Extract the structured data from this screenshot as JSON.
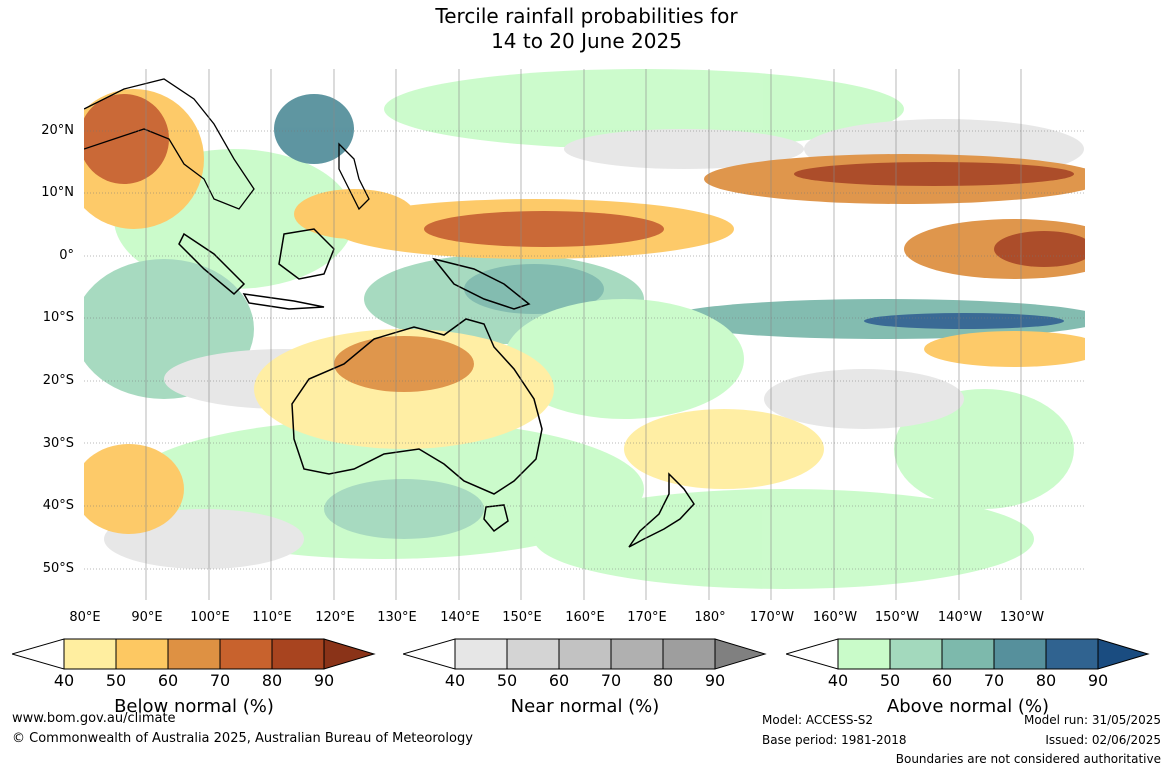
{
  "title": {
    "line1": "Tercile rainfall probabilities for",
    "line2": "14 to 20 June 2025"
  },
  "map": {
    "lat_labels": [
      "20°N",
      "10°N",
      "0°",
      "10°S",
      "20°S",
      "30°S",
      "40°S",
      "50°S"
    ],
    "lon_labels": [
      "80°E",
      "90°E",
      "100°E",
      "110°E",
      "120°E",
      "130°E",
      "140°E",
      "150°E",
      "160°E",
      "170°E",
      "180°",
      "170°W",
      "160°W",
      "150°W",
      "140°W",
      "130°W"
    ]
  },
  "legends": {
    "below": {
      "title": "Below normal (%)",
      "ticks": [
        "40",
        "50",
        "60",
        "70",
        "80",
        "90"
      ],
      "colors": [
        "#ffeea0",
        "#fdc862",
        "#de9143",
        "#c8622d",
        "#a8441f",
        "#8a3318"
      ]
    },
    "near": {
      "title": "Near normal (%)",
      "ticks": [
        "40",
        "50",
        "60",
        "70",
        "80",
        "90"
      ],
      "colors": [
        "#e6e6e6",
        "#d4d4d4",
        "#c2c2c2",
        "#b0b0b0",
        "#9e9e9e",
        "#808080"
      ]
    },
    "above": {
      "title": "Above normal (%)",
      "ticks": [
        "40",
        "50",
        "60",
        "70",
        "80",
        "90"
      ],
      "colors": [
        "#c9fbc9",
        "#a3d9bd",
        "#7db9ac",
        "#56909c",
        "#306390",
        "#1a4c80"
      ]
    }
  },
  "footer": {
    "website": "www.bom.gov.au/climate",
    "copyright": "© Commonwealth of Australia 2025, Australian Bureau of Meteorology",
    "model": "Model: ACCESS-S2",
    "base_period": "Base period: 1981-2018",
    "model_run": "Model run: 31/05/2025",
    "issued": "Issued: 02/06/2025",
    "boundaries": "Boundaries are not considered authoritative"
  }
}
